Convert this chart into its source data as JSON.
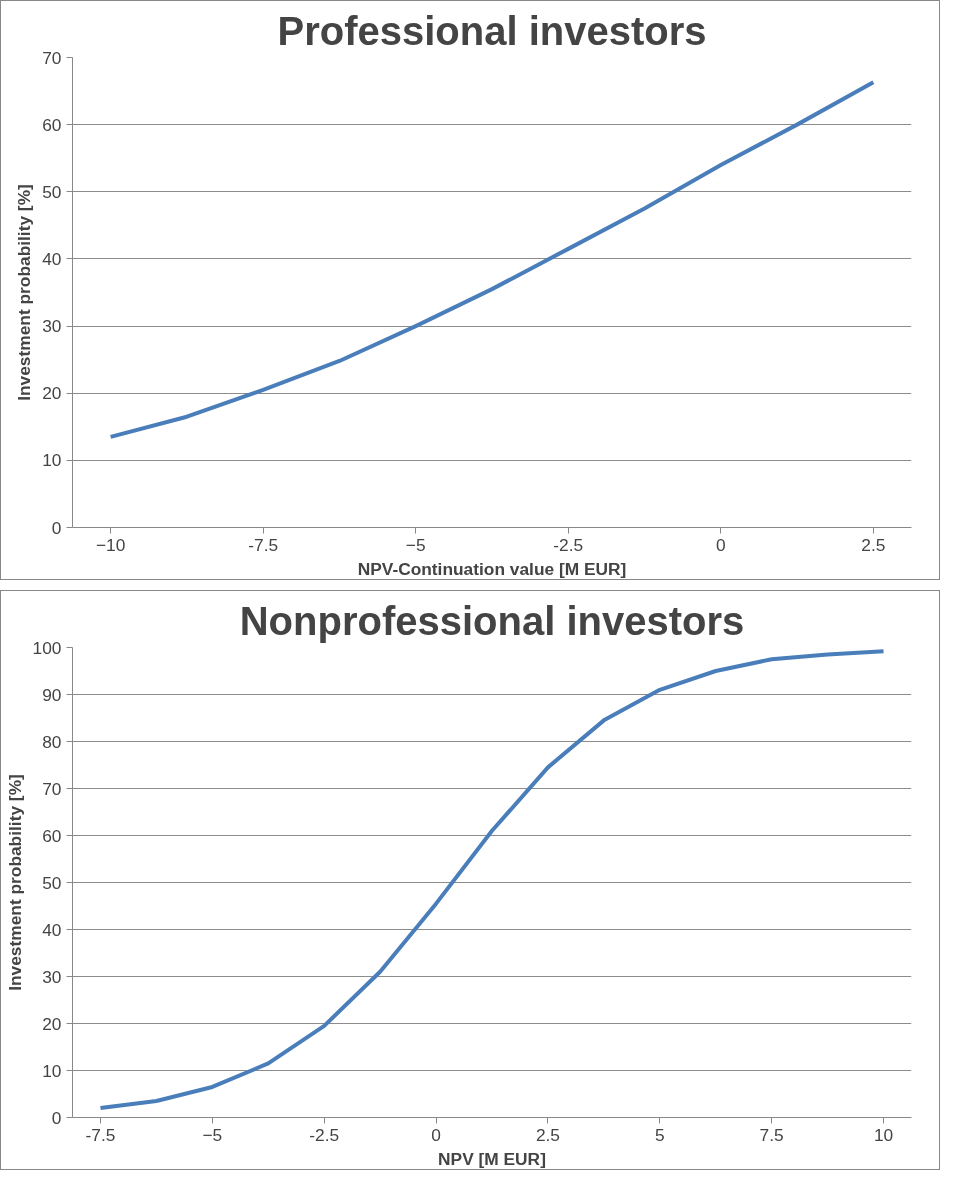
{
  "chart_data": [
    {
      "type": "line",
      "title": "Professional investors",
      "xlabel": "NPV-Continuation value [M EUR]",
      "ylabel": "Investment probability [%]",
      "x": [
        -10,
        -8.75,
        -7.5,
        -6.25,
        -5,
        -3.75,
        -2.5,
        -1.25,
        0,
        1.25,
        2.5
      ],
      "series": [
        {
          "color": "#4a7ebb",
          "values": [
            13.5,
            16.5,
            20.5,
            24.8,
            30,
            35.5,
            41.5,
            47.5,
            54,
            60,
            66.3
          ]
        }
      ],
      "xlim": [
        -10.625,
        3.125
      ],
      "xticks": [
        -10,
        {
          "value": -7.5,
          "label": "-7.5"
        },
        -5,
        {
          "value": -2.5,
          "label": "-2.5"
        },
        0,
        {
          "value": 2.5,
          "label": "2.5"
        }
      ],
      "ylim": [
        0,
        70
      ],
      "yticks": [
        0,
        10,
        20,
        30,
        40,
        50,
        60,
        70
      ],
      "grid": "y",
      "marker": "none",
      "line_style": "solid"
    },
    {
      "type": "line",
      "title": "Nonprofessional investors",
      "xlabel": "NPV [M EUR]",
      "ylabel": "Investment probability [%]",
      "x": [
        -7.5,
        -6.25,
        -5,
        -3.75,
        -2.5,
        -1.25,
        0,
        1.25,
        2.5,
        3.75,
        5,
        6.25,
        7.5,
        8.75,
        10
      ],
      "series": [
        {
          "color": "#4a7ebb",
          "values": [
            2,
            3.5,
            6.5,
            11.5,
            19.5,
            31,
            45.5,
            61,
            74.5,
            84.5,
            91,
            95,
            97.5,
            98.5,
            99.2
          ]
        }
      ],
      "xlim": [
        -8.125,
        10.625
      ],
      "xticks": [
        {
          "value": -7.5,
          "label": "-7.5"
        },
        -5,
        {
          "value": -2.5,
          "label": "-2.5"
        },
        0,
        {
          "value": 2.5,
          "label": "2.5"
        },
        5,
        {
          "value": 7.5,
          "label": "7.5"
        },
        10
      ],
      "ylim": [
        0,
        100
      ],
      "yticks": [
        0,
        10,
        20,
        30,
        40,
        50,
        60,
        70,
        80,
        90,
        100
      ],
      "grid": "y",
      "marker": "none",
      "line_style": "solid"
    }
  ]
}
